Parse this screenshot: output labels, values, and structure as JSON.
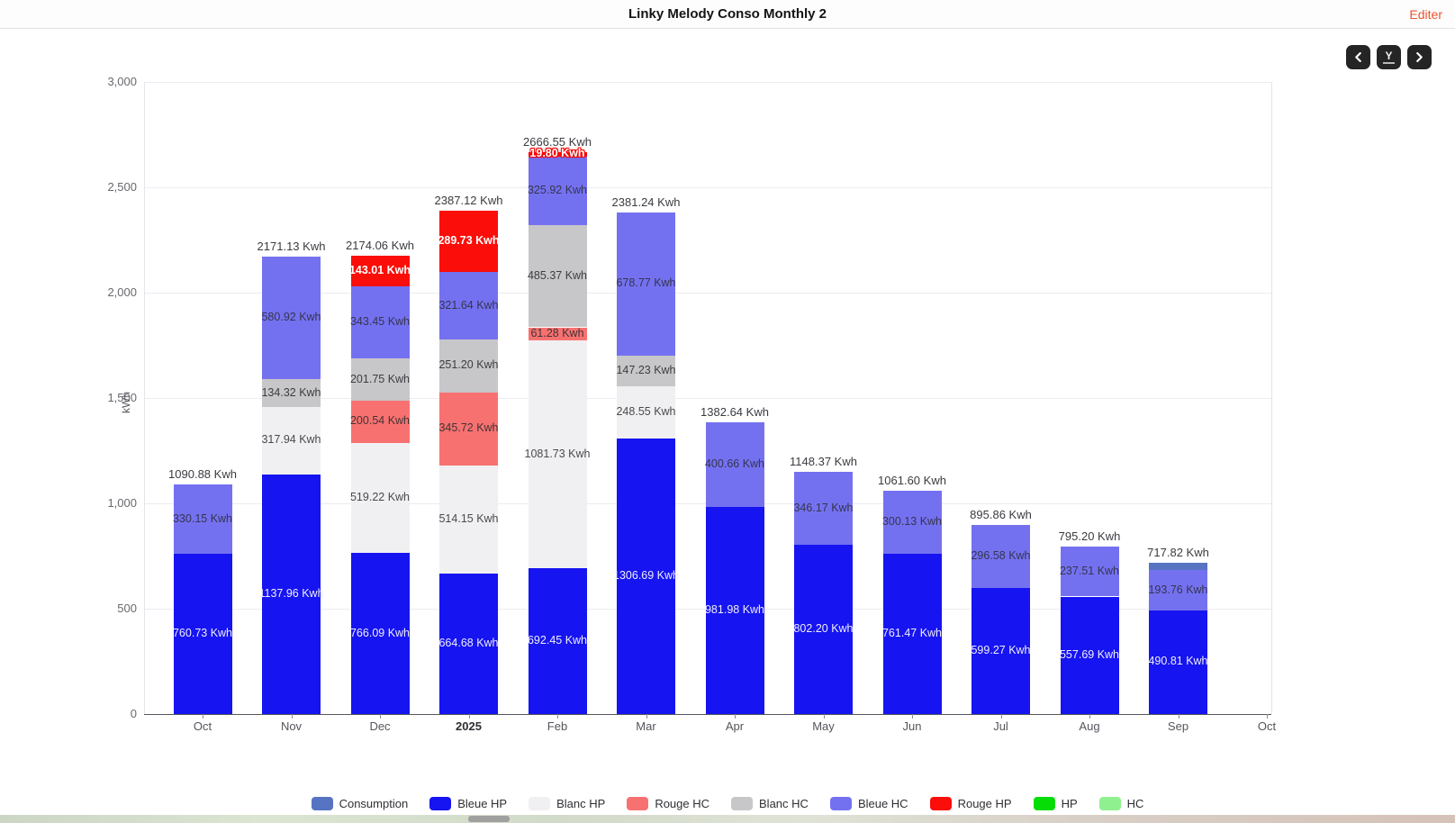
{
  "header": {
    "title": "Linky Melody Conso Monthly 2",
    "edit_label": "Editer"
  },
  "toolbar": {
    "prev_icon": "chevron-left",
    "y_axis_label": "Y",
    "next_icon": "chevron-right"
  },
  "chart_data": {
    "type": "bar",
    "stacked": true,
    "title": "Linky Melody Conso Monthly 2",
    "unit": "Kwh",
    "y_axis": {
      "name": "kWh",
      "min": 0,
      "max": 3000,
      "ticks": [
        "0",
        "500",
        "1,000",
        "1,500",
        "2,000",
        "2,500",
        "3,000"
      ],
      "tick_values": [
        0,
        500,
        1000,
        1500,
        2000,
        2500,
        3000
      ]
    },
    "x_axis": {
      "categories": [
        "Oct",
        "Nov",
        "Dec",
        "2025",
        "Feb",
        "Mar",
        "Apr",
        "May",
        "Jun",
        "Jul",
        "Aug",
        "Sep",
        "Oct"
      ],
      "bold_category": "2025"
    },
    "grid": true,
    "legend_position": "bottom",
    "colors": {
      "Consumption": {
        "fill": "#5674c1",
        "text": "#ffffff",
        "weight": "normal"
      },
      "Bleue HP": {
        "fill": "#1614f0",
        "text": "#efeefb",
        "weight": "normal"
      },
      "Blanc HP": {
        "fill": "#f0f0f2",
        "text": "#4a4a4e",
        "weight": "normal"
      },
      "Rouge HC": {
        "fill": "#f87171",
        "text": "#423434",
        "weight": "normal"
      },
      "Blanc HC": {
        "fill": "#c7c6c8",
        "text": "#3d3d41",
        "weight": "normal"
      },
      "Bleue HC": {
        "fill": "#7471f1",
        "text": "#35354e",
        "weight": "normal"
      },
      "Rouge HP": {
        "fill": "#fb0d09",
        "text": "#ffffff",
        "weight": "bold"
      },
      "HP": {
        "fill": "#06dd06",
        "text": "#ffffff",
        "weight": "normal"
      },
      "HC": {
        "fill": "#8ff08f",
        "text": "#3d3d41",
        "weight": "normal"
      }
    },
    "legend": [
      "Consumption",
      "Bleue HP",
      "Blanc HP",
      "Rouge HC",
      "Blanc HC",
      "Bleue HC",
      "Rouge HP",
      "HP",
      "HC"
    ],
    "bars": [
      {
        "category": "Oct",
        "total_value": 1090.88,
        "total_label": "1090.88 Kwh",
        "segments": [
          {
            "series": "Bleue HP",
            "value": 760.73,
            "label": "760.73 Kwh"
          },
          {
            "series": "Bleue HC",
            "value": 330.15,
            "label": "330.15 Kwh"
          }
        ]
      },
      {
        "category": "Nov",
        "total_value": 2171.13,
        "total_label": "2171.13 Kwh",
        "segments": [
          {
            "series": "Bleue HP",
            "value": 1137.96,
            "label": "1137.96 Kwh"
          },
          {
            "series": "Blanc HP",
            "value": 317.94,
            "label": "317.94 Kwh"
          },
          {
            "series": "Blanc HC",
            "value": 134.32,
            "label": "134.32 Kwh"
          },
          {
            "series": "Bleue HC",
            "value": 580.92,
            "label": "580.92 Kwh"
          }
        ]
      },
      {
        "category": "Dec",
        "total_value": 2174.06,
        "total_label": "2174.06 Kwh",
        "segments": [
          {
            "series": "Bleue HP",
            "value": 766.09,
            "label": "766.09 Kwh"
          },
          {
            "series": "Blanc HP",
            "value": 519.22,
            "label": "519.22 Kwh"
          },
          {
            "series": "Rouge HC",
            "value": 200.54,
            "label": "200.54 Kwh"
          },
          {
            "series": "Blanc HC",
            "value": 201.75,
            "label": "201.75 Kwh"
          },
          {
            "series": "Bleue HC",
            "value": 343.45,
            "label": "343.45 Kwh"
          },
          {
            "series": "Rouge HP",
            "value": 143.01,
            "label": "143.01 Kwh"
          }
        ]
      },
      {
        "category": "2025",
        "total_value": 2387.12,
        "total_label": "2387.12 Kwh",
        "segments": [
          {
            "series": "Bleue HP",
            "value": 664.68,
            "label": "664.68 Kwh"
          },
          {
            "series": "Blanc HP",
            "value": 514.15,
            "label": "514.15 Kwh"
          },
          {
            "series": "Rouge HC",
            "value": 345.72,
            "label": "345.72 Kwh"
          },
          {
            "series": "Blanc HC",
            "value": 251.2,
            "label": "251.20 Kwh"
          },
          {
            "series": "Bleue HC",
            "value": 321.64,
            "label": "321.64 Kwh"
          },
          {
            "series": "Rouge HP",
            "value": 289.73,
            "label": "289.73 Kwh"
          }
        ]
      },
      {
        "category": "Feb",
        "total_value": 2666.55,
        "total_label": "2666.55 Kwh",
        "segments": [
          {
            "series": "Bleue HP",
            "value": 692.45,
            "label": "692.45 Kwh"
          },
          {
            "series": "Blanc HP",
            "value": 1081.73,
            "label": "1081.73 Kwh"
          },
          {
            "series": "Rouge HC",
            "value": 61.28,
            "label": "61.28 Kwh"
          },
          {
            "series": "Blanc HC",
            "value": 485.37,
            "label": "485.37 Kwh"
          },
          {
            "series": "Bleue HC",
            "value": 325.92,
            "label": "325.92 Kwh"
          },
          {
            "series": "Rouge HP",
            "value": 19.8,
            "label": "19.80 Kwh",
            "label_style": "outline-red"
          }
        ]
      },
      {
        "category": "Mar",
        "total_value": 2381.24,
        "total_label": "2381.24 Kwh",
        "segments": [
          {
            "series": "Bleue HP",
            "value": 1306.69,
            "label": "1306.69 Kwh"
          },
          {
            "series": "Blanc HP",
            "value": 248.55,
            "label": "248.55 Kwh"
          },
          {
            "series": "Blanc HC",
            "value": 147.23,
            "label": "147.23 Kwh"
          },
          {
            "series": "Bleue HC",
            "value": 678.77,
            "label": "678.77 Kwh"
          }
        ]
      },
      {
        "category": "Apr",
        "total_value": 1382.64,
        "total_label": "1382.64 Kwh",
        "segments": [
          {
            "series": "Bleue HP",
            "value": 981.98,
            "label": "981.98 Kwh"
          },
          {
            "series": "Bleue HC",
            "value": 400.66,
            "label": "400.66 Kwh"
          }
        ]
      },
      {
        "category": "May",
        "total_value": 1148.37,
        "total_label": "1148.37 Kwh",
        "segments": [
          {
            "series": "Bleue HP",
            "value": 802.2,
            "label": "802.20 Kwh"
          },
          {
            "series": "Bleue HC",
            "value": 346.17,
            "label": "346.17 Kwh"
          }
        ]
      },
      {
        "category": "Jun",
        "total_value": 1061.6,
        "total_label": "1061.60 Kwh",
        "segments": [
          {
            "series": "Bleue HP",
            "value": 761.47,
            "label": "761.47 Kwh"
          },
          {
            "series": "Bleue HC",
            "value": 300.13,
            "label": "300.13 Kwh"
          }
        ]
      },
      {
        "category": "Jul",
        "total_value": 895.86,
        "total_label": "895.86 Kwh",
        "segments": [
          {
            "series": "Bleue HP",
            "value": 599.27,
            "label": "599.27 Kwh"
          },
          {
            "series": "Bleue HC",
            "value": 296.58,
            "label": "296.58 Kwh"
          }
        ]
      },
      {
        "category": "Aug",
        "total_value": 795.2,
        "total_label": "795.20 Kwh",
        "segments": [
          {
            "series": "Bleue HP",
            "value": 557.69,
            "label": "557.69 Kwh"
          },
          {
            "series": "Bleue HC",
            "value": 237.51,
            "label": "237.51 Kwh"
          }
        ]
      },
      {
        "category": "Sep",
        "total_value": 717.82,
        "total_label": "717.82 Kwh",
        "segments": [
          {
            "series": "Bleue HP",
            "value": 490.81,
            "label": "490.81 Kwh"
          },
          {
            "series": "Bleue HC",
            "value": 193.76,
            "label": "193.76 Kwh"
          },
          {
            "series": "Consumption",
            "value": null,
            "label": ""
          }
        ]
      }
    ]
  }
}
